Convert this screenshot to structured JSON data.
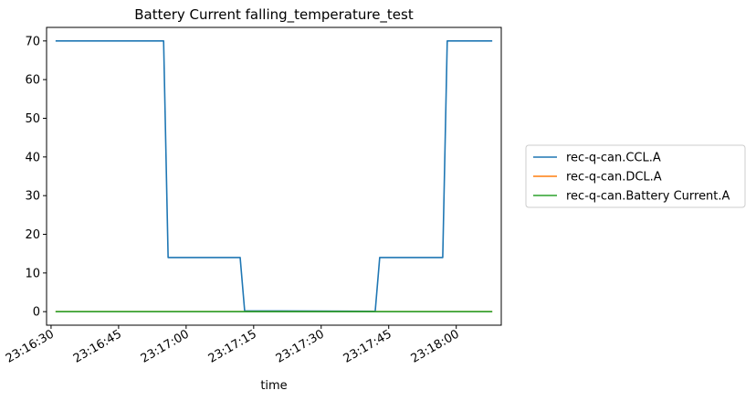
{
  "chart_data": {
    "type": "line",
    "title": "Battery Current falling_temperature_test",
    "xlabel": "time",
    "ylabel": "",
    "x_unit": "time of day (HH:MM:SS)",
    "xlim": [
      "23:16:29",
      "23:18:10"
    ],
    "ylim": [
      -3.5,
      73.5
    ],
    "x_ticks": [
      "23:16:30",
      "23:16:45",
      "23:17:00",
      "23:17:15",
      "23:17:30",
      "23:17:45",
      "23:18:00"
    ],
    "y_ticks": [
      0,
      10,
      20,
      30,
      40,
      50,
      60,
      70
    ],
    "grid": false,
    "legend_position": "outside-right",
    "series": [
      {
        "name": "rec-q-can.CCL.A",
        "color": "#1f77b4",
        "points": [
          [
            "23:16:31",
            70
          ],
          [
            "23:16:55",
            70
          ],
          [
            "23:16:56",
            14
          ],
          [
            "23:17:12",
            14
          ],
          [
            "23:17:13",
            0.2
          ],
          [
            "23:17:42",
            0.1
          ],
          [
            "23:17:43",
            14
          ],
          [
            "23:17:57",
            14
          ],
          [
            "23:17:58",
            70
          ],
          [
            "23:18:08",
            70
          ]
        ]
      },
      {
        "name": "rec-q-can.DCL.A",
        "color": "#ff7f0e",
        "points": [
          [
            "23:16:31",
            0
          ],
          [
            "23:18:08",
            0
          ]
        ]
      },
      {
        "name": "rec-q-can.Battery Current.A",
        "color": "#2ca02c",
        "points": [
          [
            "23:16:31",
            0
          ],
          [
            "23:18:08",
            0
          ]
        ]
      }
    ]
  }
}
